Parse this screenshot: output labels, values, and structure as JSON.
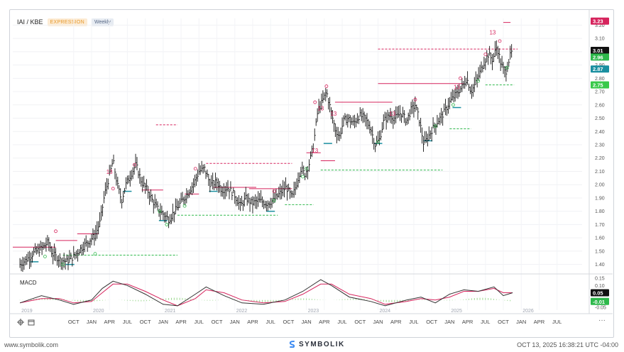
{
  "header": {
    "symbol": "IAI / KBE",
    "mode": "EXPRESSION",
    "interval": "Weekly"
  },
  "macd_label": "MACD",
  "footer": {
    "left": "www.symbolik.com",
    "brand": "SYMBOLIK",
    "right": "OCT 13, 2025 16:38:21 UTC -04:00"
  },
  "colors": {
    "price": "#111111",
    "demark_red": "#d6245d",
    "demark_green": "#2eb84b",
    "support_teal": "#1a8fa0",
    "macd": "#333333",
    "signal": "#d6245d",
    "hist": "#9ad88e"
  },
  "icons": [
    "crosshair-icon",
    "calendar-icon",
    "more-icon"
  ],
  "chart_data": {
    "type": "line",
    "title": "IAI / KBE",
    "xlabel": "",
    "ylabel": "",
    "ylim": [
      1.35,
      3.25
    ],
    "y_ticks": [
      1.4,
      1.5,
      1.6,
      1.7,
      1.8,
      1.9,
      2.0,
      2.1,
      2.2,
      2.3,
      2.4,
      2.5,
      2.6,
      2.7,
      2.8,
      2.9,
      3.0,
      3.1,
      3.2
    ],
    "x_range": [
      2018.9,
      2026.85
    ],
    "x_tick_labels": [
      {
        "t": 2019.0,
        "label": "2019",
        "year": true
      },
      {
        "t": 2019.75,
        "label": "OCT"
      },
      {
        "t": 2020.0,
        "label": "2020",
        "year": true
      },
      {
        "t": 2020.0,
        "label": "JAN"
      },
      {
        "t": 2020.25,
        "label": "APR"
      },
      {
        "t": 2020.5,
        "label": "JUL"
      },
      {
        "t": 2020.75,
        "label": "OCT"
      },
      {
        "t": 2021.0,
        "label": "2021",
        "year": true
      },
      {
        "t": 2021.0,
        "label": "JAN"
      },
      {
        "t": 2021.25,
        "label": "APR"
      },
      {
        "t": 2021.5,
        "label": "JUL"
      },
      {
        "t": 2021.75,
        "label": "OCT"
      },
      {
        "t": 2022.0,
        "label": "2022",
        "year": true
      },
      {
        "t": 2022.0,
        "label": "JAN"
      },
      {
        "t": 2022.25,
        "label": "APR"
      },
      {
        "t": 2022.5,
        "label": "JUL"
      },
      {
        "t": 2022.75,
        "label": "OCT"
      },
      {
        "t": 2023.0,
        "label": "2023",
        "year": true
      },
      {
        "t": 2023.0,
        "label": "JAN"
      },
      {
        "t": 2023.25,
        "label": "APR"
      },
      {
        "t": 2023.5,
        "label": "JUL"
      },
      {
        "t": 2023.75,
        "label": "OCT"
      },
      {
        "t": 2024.0,
        "label": "2024",
        "year": true
      },
      {
        "t": 2024.0,
        "label": "JAN"
      },
      {
        "t": 2024.25,
        "label": "APR"
      },
      {
        "t": 2024.5,
        "label": "JUL"
      },
      {
        "t": 2024.75,
        "label": "OCT"
      },
      {
        "t": 2025.0,
        "label": "2025",
        "year": true
      },
      {
        "t": 2025.0,
        "label": "JAN"
      },
      {
        "t": 2025.25,
        "label": "APR"
      },
      {
        "t": 2025.5,
        "label": "JUL"
      },
      {
        "t": 2025.75,
        "label": "OCT"
      },
      {
        "t": 2026.0,
        "label": "2026",
        "year": true
      },
      {
        "t": 2026.0,
        "label": "JAN"
      },
      {
        "t": 2026.25,
        "label": "APR"
      },
      {
        "t": 2026.5,
        "label": "JUL"
      }
    ],
    "price_series": {
      "name": "IAI / KBE",
      "points": [
        [
          2019.0,
          1.4
        ],
        [
          2019.1,
          1.44
        ],
        [
          2019.2,
          1.49
        ],
        [
          2019.3,
          1.52
        ],
        [
          2019.4,
          1.57
        ],
        [
          2019.45,
          1.48
        ],
        [
          2019.55,
          1.44
        ],
        [
          2019.65,
          1.42
        ],
        [
          2019.75,
          1.46
        ],
        [
          2019.85,
          1.52
        ],
        [
          2019.95,
          1.57
        ],
        [
          2020.05,
          1.62
        ],
        [
          2020.12,
          1.72
        ],
        [
          2020.18,
          1.92
        ],
        [
          2020.24,
          2.05
        ],
        [
          2020.3,
          2.18
        ],
        [
          2020.36,
          2.0
        ],
        [
          2020.42,
          1.88
        ],
        [
          2020.48,
          2.0
        ],
        [
          2020.55,
          2.08
        ],
        [
          2020.62,
          2.15
        ],
        [
          2020.7,
          2.02
        ],
        [
          2020.78,
          1.96
        ],
        [
          2020.85,
          1.88
        ],
        [
          2020.92,
          1.82
        ],
        [
          2021.0,
          1.78
        ],
        [
          2021.08,
          1.74
        ],
        [
          2021.16,
          1.8
        ],
        [
          2021.24,
          1.86
        ],
        [
          2021.32,
          1.92
        ],
        [
          2021.42,
          2.0
        ],
        [
          2021.5,
          2.1
        ],
        [
          2021.58,
          2.12
        ],
        [
          2021.66,
          2.0
        ],
        [
          2021.75,
          2.02
        ],
        [
          2021.82,
          1.96
        ],
        [
          2021.9,
          1.98
        ],
        [
          2022.0,
          1.92
        ],
        [
          2022.08,
          1.84
        ],
        [
          2022.16,
          1.9
        ],
        [
          2022.24,
          1.86
        ],
        [
          2022.34,
          1.88
        ],
        [
          2022.44,
          1.86
        ],
        [
          2022.54,
          1.88
        ],
        [
          2022.64,
          1.94
        ],
        [
          2022.72,
          1.98
        ],
        [
          2022.8,
          1.9
        ],
        [
          2022.86,
          2.0
        ],
        [
          2022.92,
          2.12
        ],
        [
          2022.98,
          2.08
        ],
        [
          2023.04,
          2.16
        ],
        [
          2023.1,
          2.3
        ],
        [
          2023.16,
          2.56
        ],
        [
          2023.22,
          2.62
        ],
        [
          2023.28,
          2.7
        ],
        [
          2023.34,
          2.56
        ],
        [
          2023.4,
          2.42
        ],
        [
          2023.46,
          2.36
        ],
        [
          2023.52,
          2.48
        ],
        [
          2023.58,
          2.5
        ],
        [
          2023.66,
          2.46
        ],
        [
          2023.74,
          2.52
        ],
        [
          2023.82,
          2.5
        ],
        [
          2023.9,
          2.42
        ],
        [
          2023.96,
          2.3
        ],
        [
          2024.02,
          2.34
        ],
        [
          2024.08,
          2.48
        ],
        [
          2024.16,
          2.52
        ],
        [
          2024.24,
          2.5
        ],
        [
          2024.32,
          2.54
        ],
        [
          2024.4,
          2.48
        ],
        [
          2024.46,
          2.56
        ],
        [
          2024.52,
          2.6
        ],
        [
          2024.58,
          2.48
        ],
        [
          2024.64,
          2.3
        ],
        [
          2024.7,
          2.36
        ],
        [
          2024.76,
          2.42
        ],
        [
          2024.84,
          2.48
        ],
        [
          2024.92,
          2.54
        ],
        [
          2025.0,
          2.62
        ],
        [
          2025.06,
          2.66
        ],
        [
          2025.12,
          2.7
        ],
        [
          2025.18,
          2.74
        ],
        [
          2025.24,
          2.8
        ],
        [
          2025.3,
          2.7
        ],
        [
          2025.36,
          2.76
        ],
        [
          2025.42,
          2.84
        ],
        [
          2025.48,
          2.92
        ],
        [
          2025.54,
          2.98
        ],
        [
          2025.6,
          2.94
        ],
        [
          2025.66,
          3.04
        ],
        [
          2025.72,
          2.9
        ],
        [
          2025.78,
          2.84
        ],
        [
          2025.84,
          2.96
        ],
        [
          2025.88,
          3.01
        ]
      ]
    },
    "macd_series": {
      "name": "MACD",
      "ylim": [
        -0.07,
        0.17
      ],
      "y_ticks": [
        -0.05,
        0.0,
        0.1,
        0.15
      ],
      "macd": [
        [
          2019.0,
          -0.02
        ],
        [
          2019.3,
          0.03
        ],
        [
          2019.55,
          0.0
        ],
        [
          2019.75,
          -0.03
        ],
        [
          2020.0,
          0.0
        ],
        [
          2020.15,
          0.08
        ],
        [
          2020.3,
          0.13
        ],
        [
          2020.5,
          0.1
        ],
        [
          2020.75,
          0.04
        ],
        [
          2021.0,
          -0.03
        ],
        [
          2021.2,
          -0.04
        ],
        [
          2021.45,
          0.04
        ],
        [
          2021.6,
          0.09
        ],
        [
          2021.85,
          0.03
        ],
        [
          2022.1,
          -0.02
        ],
        [
          2022.4,
          -0.03
        ],
        [
          2022.7,
          0.0
        ],
        [
          2022.95,
          0.06
        ],
        [
          2023.2,
          0.14
        ],
        [
          2023.35,
          0.1
        ],
        [
          2023.6,
          0.02
        ],
        [
          2023.9,
          -0.01
        ],
        [
          2024.1,
          -0.04
        ],
        [
          2024.4,
          0.0
        ],
        [
          2024.6,
          0.02
        ],
        [
          2024.8,
          -0.02
        ],
        [
          2025.0,
          0.04
        ],
        [
          2025.2,
          0.07
        ],
        [
          2025.4,
          0.06
        ],
        [
          2025.62,
          0.09
        ],
        [
          2025.75,
          0.03
        ],
        [
          2025.88,
          0.05
        ]
      ],
      "signal": [
        [
          2019.0,
          -0.02
        ],
        [
          2019.3,
          0.01
        ],
        [
          2019.55,
          0.01
        ],
        [
          2019.75,
          -0.02
        ],
        [
          2020.0,
          -0.01
        ],
        [
          2020.15,
          0.05
        ],
        [
          2020.3,
          0.11
        ],
        [
          2020.5,
          0.11
        ],
        [
          2020.75,
          0.06
        ],
        [
          2021.0,
          0.0
        ],
        [
          2021.2,
          -0.04
        ],
        [
          2021.45,
          0.01
        ],
        [
          2021.6,
          0.07
        ],
        [
          2021.85,
          0.05
        ],
        [
          2022.1,
          0.0
        ],
        [
          2022.4,
          -0.02
        ],
        [
          2022.7,
          -0.01
        ],
        [
          2022.95,
          0.04
        ],
        [
          2023.2,
          0.11
        ],
        [
          2023.35,
          0.11
        ],
        [
          2023.6,
          0.04
        ],
        [
          2023.9,
          0.01
        ],
        [
          2024.1,
          -0.03
        ],
        [
          2024.4,
          -0.01
        ],
        [
          2024.6,
          0.01
        ],
        [
          2024.8,
          0.0
        ],
        [
          2025.0,
          0.02
        ],
        [
          2025.2,
          0.06
        ],
        [
          2025.4,
          0.06
        ],
        [
          2025.62,
          0.08
        ],
        [
          2025.75,
          0.05
        ],
        [
          2025.88,
          0.05
        ]
      ]
    },
    "resistance_lines": [
      [
        2018.9,
        2019.5,
        1.53
      ],
      [
        2019.5,
        2019.8,
        1.58
      ],
      [
        2019.8,
        2020.1,
        1.63
      ],
      [
        2020.7,
        2021.0,
        1.96
      ],
      [
        2021.3,
        2021.5,
        1.93
      ],
      [
        2021.7,
        2022.3,
        1.98
      ],
      [
        2022.2,
        2022.8,
        1.97
      ],
      [
        2023.0,
        2023.2,
        2.24
      ],
      [
        2023.2,
        2023.4,
        2.18
      ],
      [
        2023.4,
        2024.2,
        2.62
      ],
      [
        2024.0,
        2025.2,
        2.76
      ],
      [
        2025.75,
        2025.85,
        3.22
      ]
    ],
    "dashed_resistance": [
      [
        2020.9,
        2021.2,
        2.45
      ],
      [
        2021.6,
        2022.8,
        2.16
      ],
      [
        2024.0,
        2025.95,
        3.02
      ]
    ],
    "dashed_support": [
      [
        2019.6,
        2021.2,
        1.47
      ],
      [
        2021.2,
        2022.6,
        1.77
      ],
      [
        2022.7,
        2023.1,
        1.85
      ],
      [
        2023.2,
        2024.9,
        2.11
      ],
      [
        2025.0,
        2025.3,
        2.42
      ],
      [
        2025.5,
        2025.9,
        2.75
      ]
    ],
    "support_markers": [
      [
        2019.2,
        1.42
      ],
      [
        2019.7,
        1.4
      ],
      [
        2020.5,
        1.95
      ],
      [
        2021.0,
        1.73
      ],
      [
        2021.7,
        1.95
      ],
      [
        2022.5,
        1.8
      ],
      [
        2023.3,
        2.31
      ],
      [
        2024.0,
        2.31
      ],
      [
        2024.7,
        2.33
      ],
      [
        2025.1,
        2.58
      ]
    ],
    "dots_red": [
      [
        2019.5,
        1.65
      ],
      [
        2020.3,
        1.97
      ],
      [
        2020.6,
        2.15
      ],
      [
        2021.45,
        2.12
      ],
      [
        2022.55,
        1.95
      ],
      [
        2023.12,
        2.62
      ],
      [
        2023.28,
        2.74
      ],
      [
        2024.52,
        2.64
      ],
      [
        2025.15,
        2.8
      ],
      [
        2025.5,
        2.98
      ],
      [
        2025.7,
        3.08
      ]
    ],
    "dots_green": [
      [
        2019.35,
        1.46
      ],
      [
        2019.6,
        1.4
      ],
      [
        2020.05,
        1.48
      ],
      [
        2020.95,
        1.8
      ],
      [
        2021.05,
        1.7
      ],
      [
        2021.3,
        1.84
      ],
      [
        2022.55,
        1.88
      ],
      [
        2022.95,
        2.06
      ],
      [
        2023.0,
        2.12
      ],
      [
        2024.0,
        2.32
      ],
      [
        2024.8,
        2.44
      ],
      [
        2025.05,
        2.6
      ],
      [
        2025.4,
        2.78
      ],
      [
        2025.8,
        2.88
      ]
    ],
    "count_13_labels": [
      {
        "t": 2020.25,
        "v": 2.08,
        "label": "13"
      },
      {
        "t": 2023.2,
        "v": 2.56,
        "label": "13"
      },
      {
        "t": 2023.38,
        "v": 2.52,
        "label": "13"
      },
      {
        "t": 2024.2,
        "v": 2.52,
        "label": "13"
      },
      {
        "t": 2025.1,
        "v": 2.72,
        "label": "13"
      },
      {
        "t": 2025.6,
        "v": 3.13,
        "label": "13"
      },
      {
        "t": 2023.12,
        "v": 2.24,
        "label": "13"
      }
    ],
    "price_tags": [
      {
        "label": "3.23",
        "value": 3.23,
        "bg": "#d6245d",
        "fg": "#ffffff"
      },
      {
        "label": "3.01",
        "value": 3.01,
        "bg": "#111111",
        "fg": "#ffffff"
      },
      {
        "label": "2.96",
        "value": 2.96,
        "bg": "#2eb84b",
        "fg": "#ffffff"
      },
      {
        "label": "2.87",
        "value": 2.87,
        "bg": "#1a8fa0",
        "fg": "#ffffff"
      },
      {
        "label": "2.75",
        "value": 2.75,
        "bg": "#39c94a",
        "fg": "#ffffff"
      }
    ],
    "macd_tags": [
      {
        "label": "0.05",
        "value": 0.05,
        "bg": "#111111",
        "fg": "#ffffff"
      },
      {
        "label": "-0.01",
        "value": -0.01,
        "bg": "#2eb84b",
        "fg": "#ffffff"
      }
    ]
  }
}
